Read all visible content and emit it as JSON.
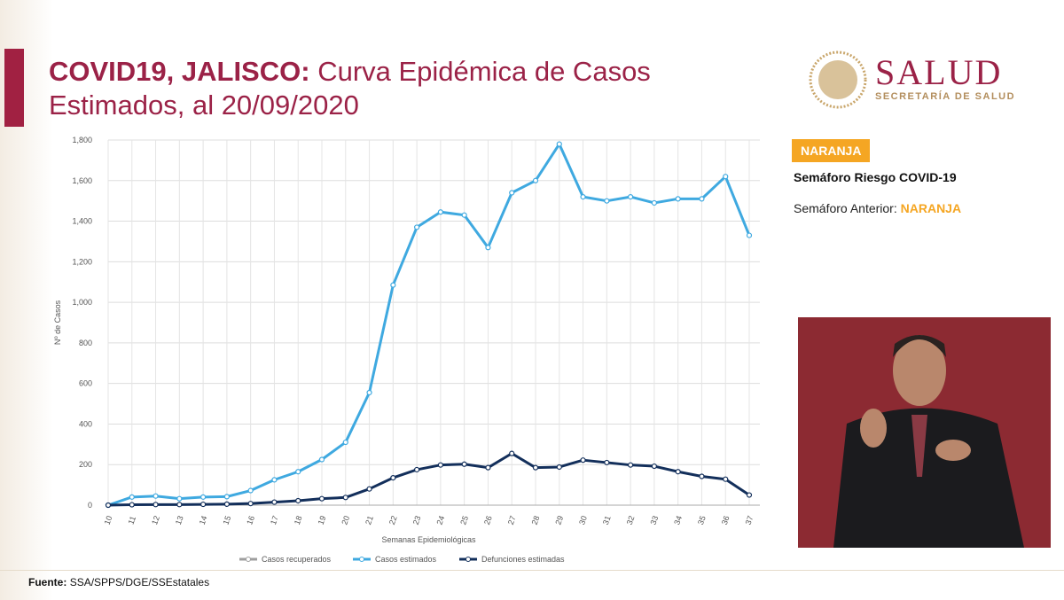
{
  "header": {
    "title_bold": "COVID19, JALISCO:",
    "title_line1": "Curva Epidémica de Casos",
    "title_line2": "Estimados, al 20/09/2020"
  },
  "logo": {
    "name": "SALUD",
    "subtitle": "SECRETARÍA DE SALUD"
  },
  "semaforo": {
    "badge": "NARANJA",
    "title": "Semáforo Riesgo COVID-19",
    "previous_label": "Semáforo Anterior:",
    "previous_value": "NARANJA"
  },
  "source": {
    "label": "Fuente:",
    "text": "SSA/SPPS/DGE/SSEstatales"
  },
  "chart_data": {
    "type": "line",
    "y_label": "Nº de Casos",
    "x_label": "Semanas Epidemiológicas",
    "categories": [
      "10",
      "11",
      "12",
      "13",
      "14",
      "15",
      "16",
      "17",
      "18",
      "19",
      "20",
      "21",
      "22",
      "23",
      "24",
      "25",
      "26",
      "27",
      "28",
      "29",
      "30",
      "31",
      "32",
      "33",
      "34",
      "35",
      "36",
      "37"
    ],
    "series": [
      {
        "name": "Casos recuperados",
        "color": "#9e9e9e",
        "values": [
          null,
          null,
          null,
          null,
          null,
          null,
          null,
          null,
          null,
          null,
          null,
          null,
          null,
          null,
          null,
          null,
          null,
          null,
          null,
          null,
          null,
          null,
          null,
          null,
          null,
          null,
          null,
          null
        ]
      },
      {
        "name": "Casos estimados",
        "color": "#3fa9e0",
        "values": [
          0,
          40,
          45,
          32,
          40,
          42,
          72,
          125,
          165,
          225,
          310,
          555,
          1085,
          1370,
          1445,
          1430,
          1270,
          1540,
          1600,
          1780,
          1520,
          1500,
          1520,
          1490,
          1510,
          1510,
          1620,
          1330
        ]
      },
      {
        "name": "Defunciones estimadas",
        "color": "#132f5b",
        "values": [
          0,
          2,
          3,
          3,
          4,
          5,
          8,
          15,
          22,
          32,
          38,
          80,
          135,
          175,
          198,
          202,
          185,
          255,
          185,
          188,
          222,
          210,
          198,
          192,
          165,
          142,
          128,
          50
        ]
      }
    ],
    "ylim": [
      0,
      1800
    ],
    "yticks": [
      0,
      200,
      400,
      600,
      800,
      {
        "value": 1000,
        "label": "1,000"
      },
      {
        "value": 1200,
        "label": "1,200"
      },
      {
        "value": 1400,
        "label": "1,400"
      },
      {
        "value": 1600,
        "label": "1,600"
      },
      {
        "value": 1800,
        "label": "1,800"
      }
    ],
    "grid": true,
    "legend": "bottom"
  }
}
